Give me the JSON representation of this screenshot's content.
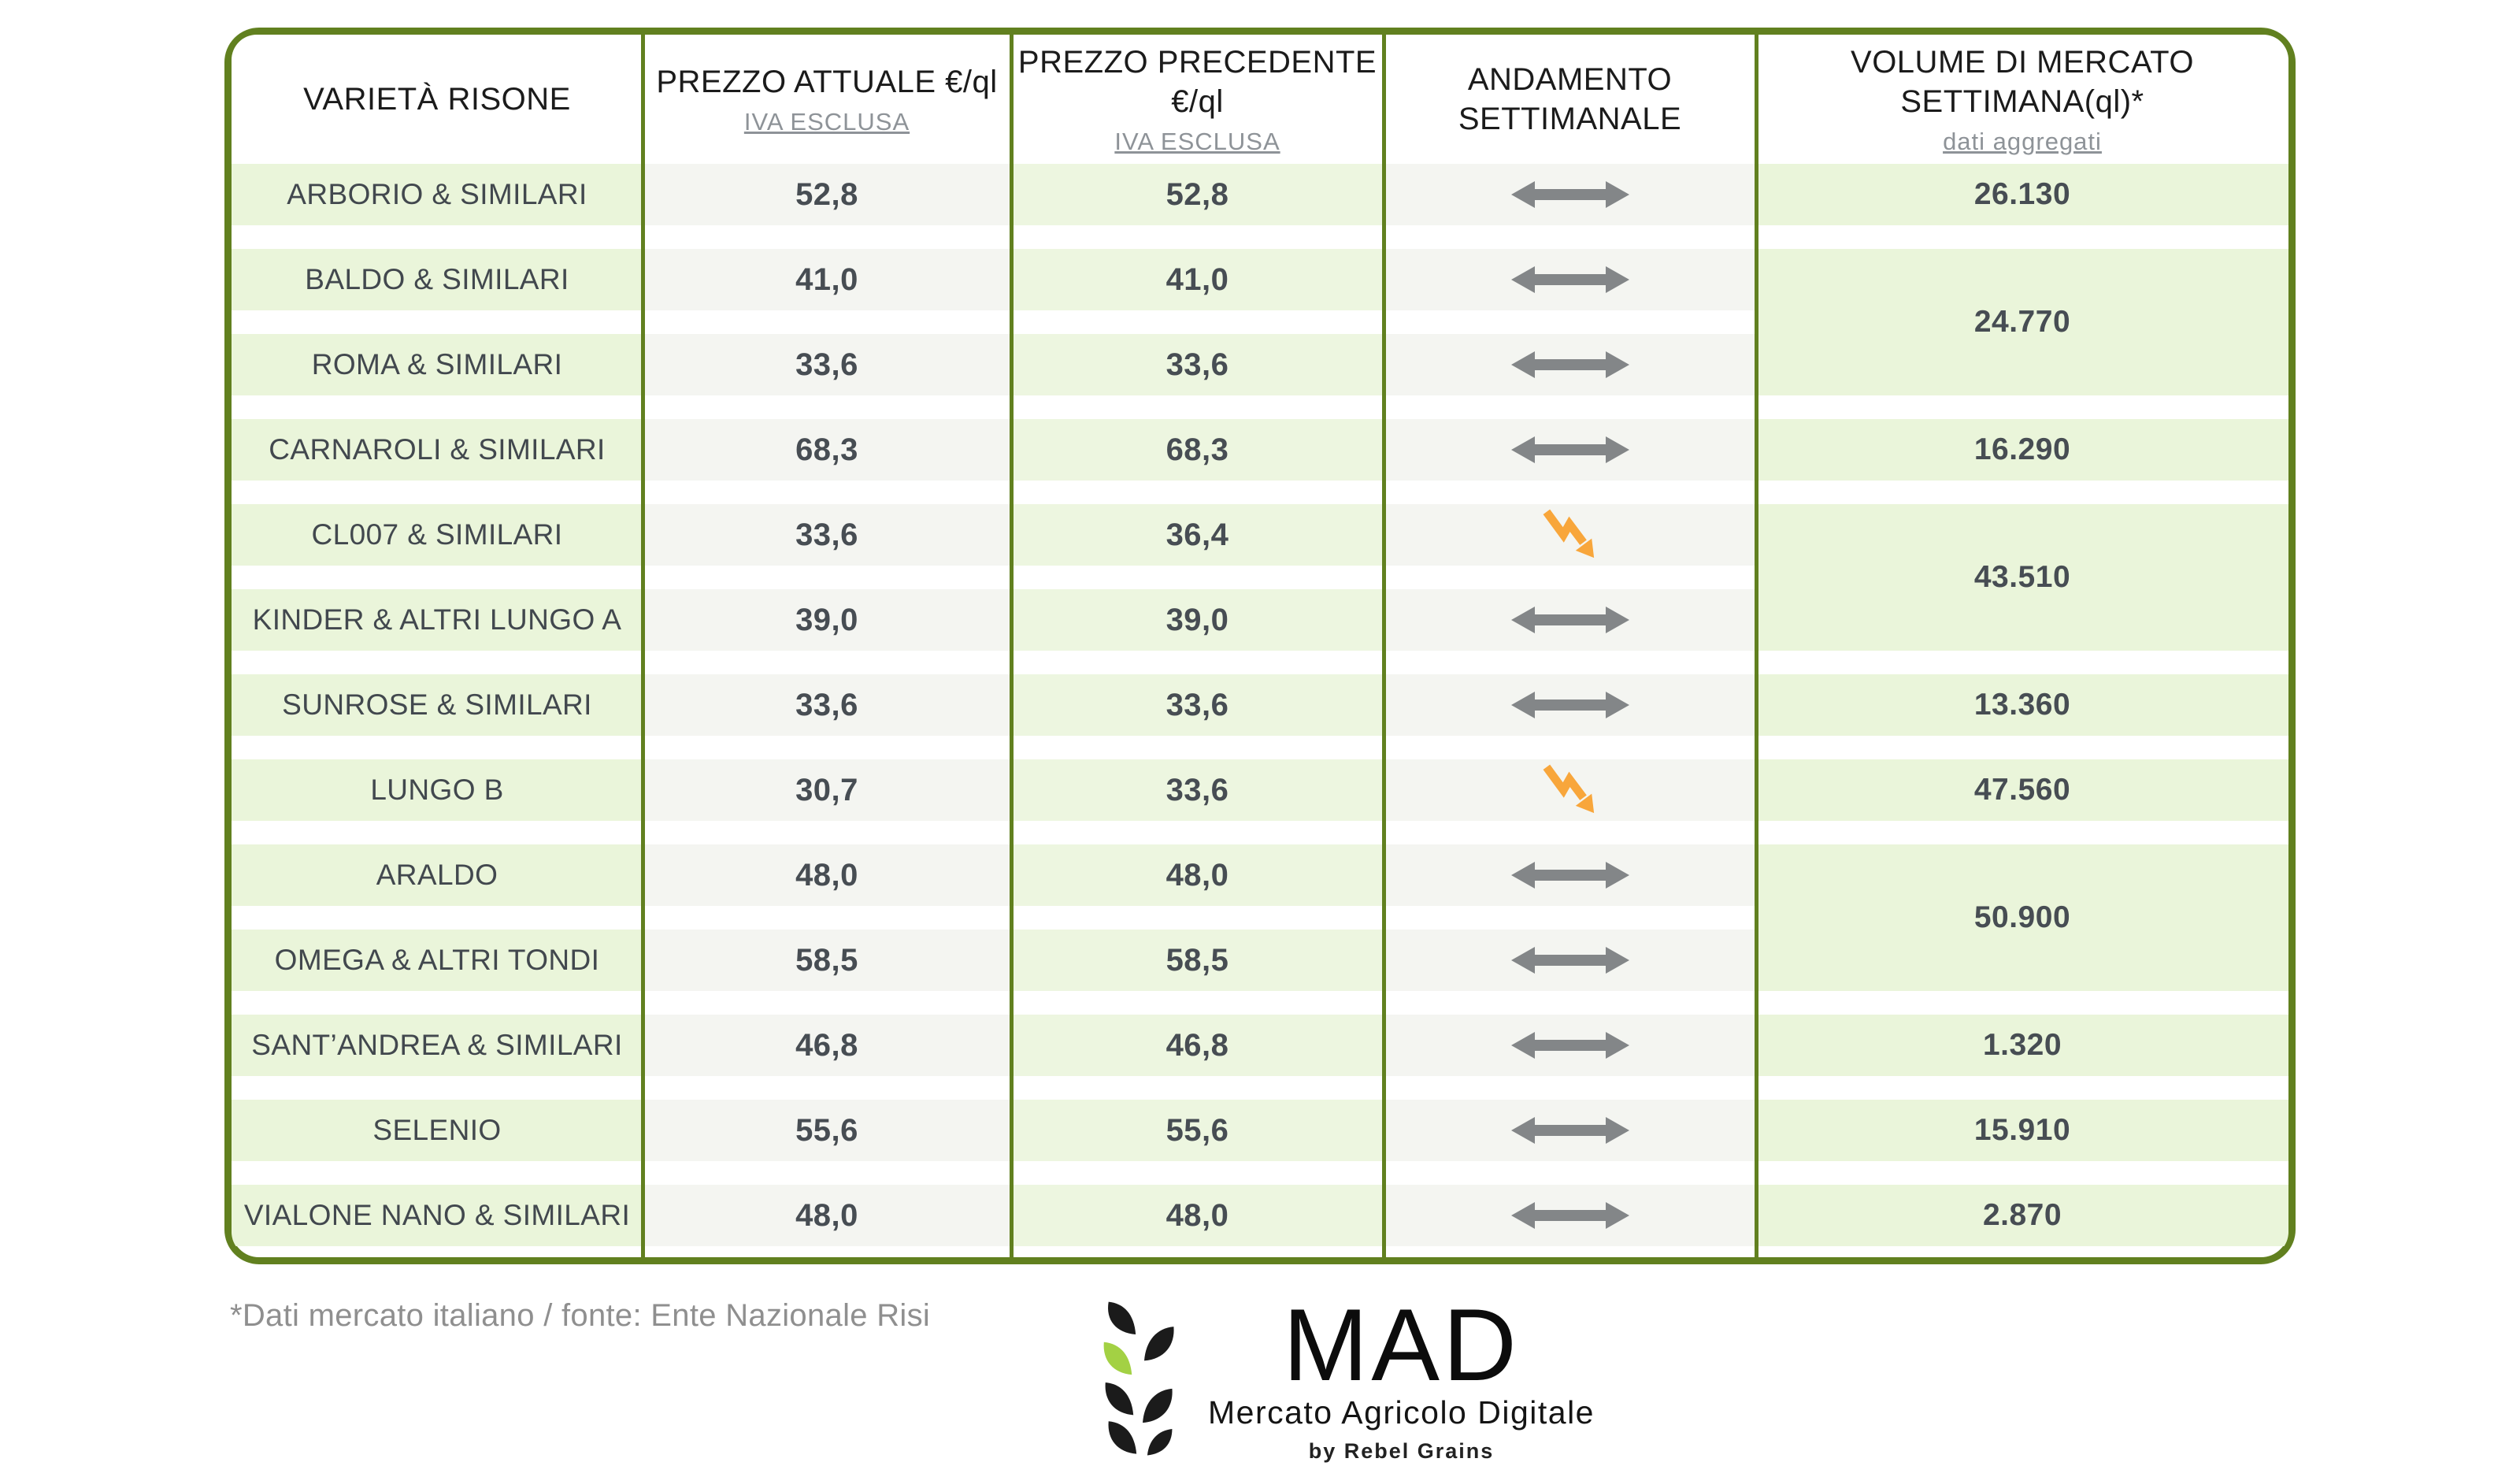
{
  "table": {
    "header": {
      "columns": [
        {
          "title": "VARIETÀ RISONE",
          "subtitle": ""
        },
        {
          "title": "PREZZO ATTUALE €/ql",
          "subtitle": "IVA ESCLUSA"
        },
        {
          "title": "PREZZO PRECEDENTE €/ql",
          "subtitle": "IVA ESCLUSA"
        },
        {
          "title": "ANDAMENTO\nSETTIMANALE",
          "subtitle": ""
        },
        {
          "title": "VOLUME DI MERCATO SETTIMANA(ql)*",
          "subtitle": "dati aggregati"
        }
      ]
    },
    "rows": [
      {
        "variety": "ARBORIO & SIMILARI",
        "current": "52,8",
        "previous": "52,8",
        "trend": "stable"
      },
      {
        "variety": "BALDO & SIMILARI",
        "current": "41,0",
        "previous": "41,0",
        "trend": "stable"
      },
      {
        "variety": "ROMA & SIMILARI",
        "current": "33,6",
        "previous": "33,6",
        "trend": "stable"
      },
      {
        "variety": "CARNAROLI & SIMILARI",
        "current": "68,3",
        "previous": "68,3",
        "trend": "stable"
      },
      {
        "variety": "CL007 & SIMILARI",
        "current": "33,6",
        "previous": "36,4",
        "trend": "down"
      },
      {
        "variety": "KINDER & ALTRI LUNGO A",
        "current": "39,0",
        "previous": "39,0",
        "trend": "stable"
      },
      {
        "variety": "SUNROSE & SIMILARI",
        "current": "33,6",
        "previous": "33,6",
        "trend": "stable"
      },
      {
        "variety": "LUNGO B",
        "current": "30,7",
        "previous": "33,6",
        "trend": "down"
      },
      {
        "variety": "ARALDO",
        "current": "48,0",
        "previous": "48,0",
        "trend": "stable"
      },
      {
        "variety": "OMEGA & ALTRI TONDI",
        "current": "58,5",
        "previous": "58,5",
        "trend": "stable"
      },
      {
        "variety": "SANT’ANDREA & SIMILARI",
        "current": "46,8",
        "previous": "46,8",
        "trend": "stable"
      },
      {
        "variety": "SELENIO",
        "current": "55,6",
        "previous": "55,6",
        "trend": "stable"
      },
      {
        "variety": "VIALONE NANO & SIMILARI",
        "current": "48,0",
        "previous": "48,0",
        "trend": "stable"
      }
    ],
    "volumes": [
      {
        "value": "26.130",
        "start": 1,
        "span": 1
      },
      {
        "value": "24.770",
        "start": 2,
        "span": 2
      },
      {
        "value": "16.290",
        "start": 4,
        "span": 1
      },
      {
        "value": "43.510",
        "start": 5,
        "span": 2
      },
      {
        "value": "13.360",
        "start": 7,
        "span": 1
      },
      {
        "value": "47.560",
        "start": 8,
        "span": 1
      },
      {
        "value": "50.900",
        "start": 9,
        "span": 2
      },
      {
        "value": "1.320",
        "start": 11,
        "span": 1
      },
      {
        "value": "15.910",
        "start": 12,
        "span": 1
      },
      {
        "value": "2.870",
        "start": 13,
        "span": 1
      }
    ]
  },
  "chart_data": {
    "type": "table",
    "title": "Prezzi risone e volumi di mercato settimanali",
    "columns": [
      "VARIETÀ RISONE",
      "PREZZO ATTUALE €/ql (IVA ESCLUSA)",
      "PREZZO PRECEDENTE €/ql (IVA ESCLUSA)",
      "ANDAMENTO SETTIMANALE",
      "VOLUME DI MERCATO SETTIMANA(ql)* dati aggregati"
    ],
    "rows": [
      [
        "ARBORIO & SIMILARI",
        52.8,
        52.8,
        "stable",
        26130
      ],
      [
        "BALDO & SIMILARI",
        41.0,
        41.0,
        "stable",
        24770
      ],
      [
        "ROMA & SIMILARI",
        33.6,
        33.6,
        "stable",
        24770
      ],
      [
        "CARNAROLI & SIMILARI",
        68.3,
        68.3,
        "stable",
        16290
      ],
      [
        "CL007 & SIMILARI",
        33.6,
        36.4,
        "down",
        43510
      ],
      [
        "KINDER & ALTRI LUNGO A",
        39.0,
        39.0,
        "stable",
        43510
      ],
      [
        "SUNROSE & SIMILARI",
        33.6,
        33.6,
        "stable",
        13360
      ],
      [
        "LUNGO B",
        30.7,
        33.6,
        "down",
        47560
      ],
      [
        "ARALDO",
        48.0,
        48.0,
        "stable",
        50900
      ],
      [
        "OMEGA & ALTRI TONDI",
        58.5,
        58.5,
        "stable",
        50900
      ],
      [
        "SANT’ANDREA & SIMILARI",
        46.8,
        46.8,
        "stable",
        1320
      ],
      [
        "SELENIO",
        55.6,
        55.6,
        "stable",
        15910
      ],
      [
        "VIALONE NANO & SIMILARI",
        48.0,
        48.0,
        "stable",
        2870
      ]
    ]
  },
  "footer": {
    "note": "*Dati mercato italiano / fonte: Ente Nazionale Risi"
  },
  "logo": {
    "acronym": "MAD",
    "name": "Mercato Agricolo Digitale",
    "byline": "by Rebel Grains"
  },
  "icons": {
    "stable": "left-right-arrow",
    "down": "downward-zigzag-arrow"
  },
  "colors": {
    "border_green": "#61801f",
    "band_green": "#eaf5da",
    "band_gray": "#f4f5f1",
    "arrow_gray": "#838688",
    "arrow_orange": "#f8a63b",
    "text_dark": "#474d53",
    "text_gray": "#8e9398"
  }
}
